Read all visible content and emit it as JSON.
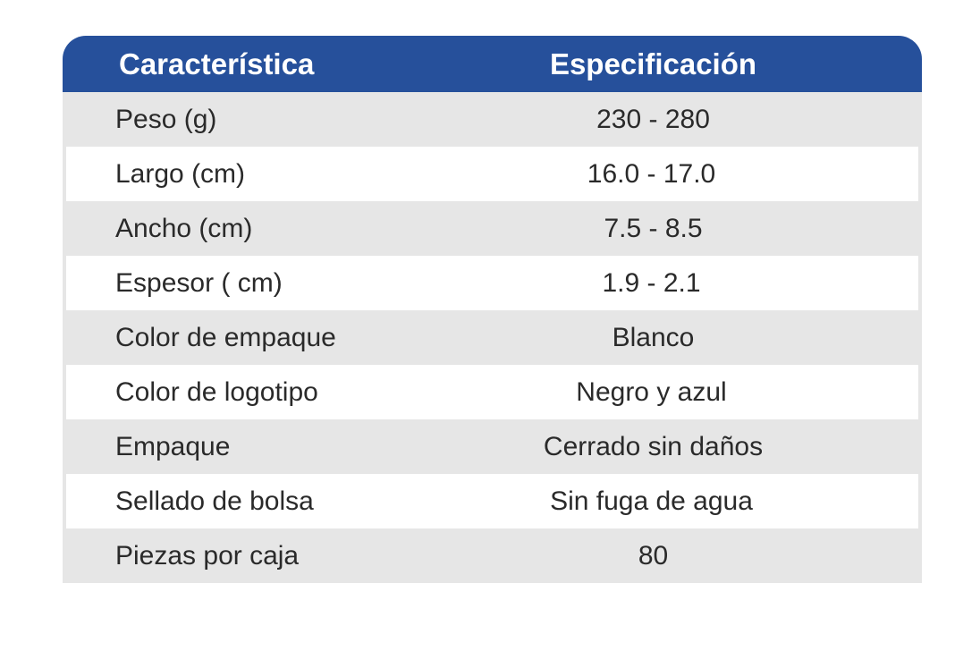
{
  "table": {
    "headers": [
      "Característica",
      "Especificación"
    ],
    "rows": [
      [
        "Peso (g)",
        "230 - 280"
      ],
      [
        "Largo (cm)",
        "16.0 - 17.0"
      ],
      [
        "Ancho (cm)",
        "7.5 - 8.5"
      ],
      [
        "Espesor ( cm)",
        "1.9 - 2.1"
      ],
      [
        "Color de empaque",
        "Blanco"
      ],
      [
        "Color de logotipo",
        "Negro y azul"
      ],
      [
        "Empaque",
        "Cerrado sin daños"
      ],
      [
        "Sellado de bolsa",
        "Sin fuga de agua"
      ],
      [
        "Piezas por caja",
        "80"
      ]
    ],
    "colors": {
      "header_bg": "#26509b",
      "header_text": "#ffffff",
      "stripe": "#e6e6e6"
    }
  }
}
